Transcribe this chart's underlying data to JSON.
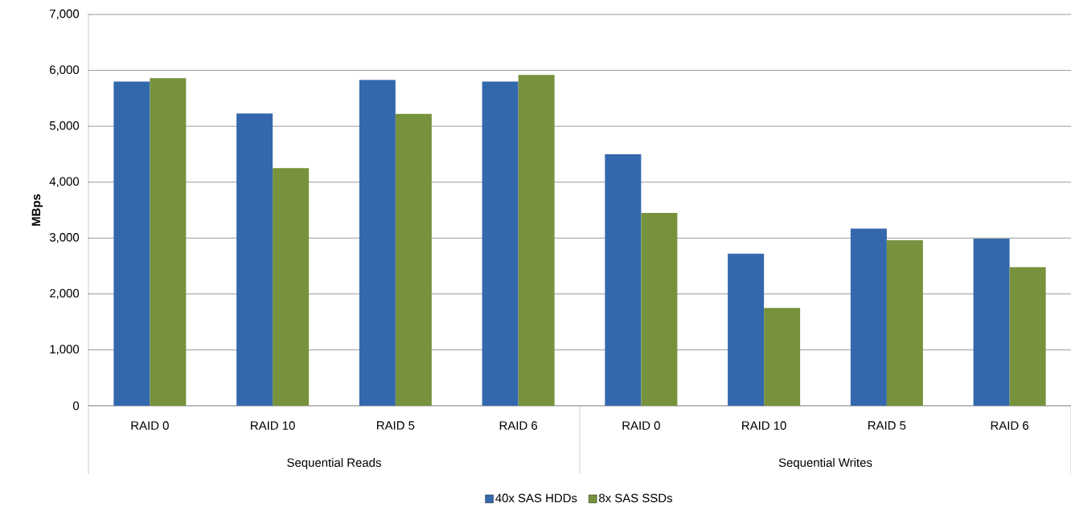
{
  "chart_data": {
    "type": "bar",
    "ylabel": "MBps",
    "categories": [
      "RAID 0",
      "RAID 10",
      "RAID 5",
      "RAID 6",
      "RAID 0",
      "RAID 10",
      "RAID 5",
      "RAID 6"
    ],
    "annotations": [
      "Sequential Reads",
      "Sequential Writes"
    ],
    "series": [
      {
        "name": "40x SAS HDDs",
        "color": "#3468ad",
        "values": [
          5800,
          5230,
          5830,
          5800,
          4500,
          2720,
          3170,
          2990
        ]
      },
      {
        "name": "8x SAS SSDs",
        "color": "#76923c",
        "values": [
          5860,
          4250,
          5220,
          5920,
          3450,
          1750,
          2960,
          2480
        ]
      }
    ],
    "ylim": [
      0,
      7000
    ],
    "yticks": [
      0,
      {
        "value": 1000,
        "label": "1,000"
      },
      {
        "value": 2000,
        "label": "2,000"
      },
      {
        "value": 3000,
        "label": "3,000"
      },
      {
        "value": 4000,
        "label": "4,000"
      },
      {
        "value": 5000,
        "label": "5,000"
      },
      {
        "value": 6000,
        "label": "6,000"
      },
      {
        "value": 7000,
        "label": "7,000"
      }
    ],
    "grid": "y",
    "legend": "bottom"
  }
}
